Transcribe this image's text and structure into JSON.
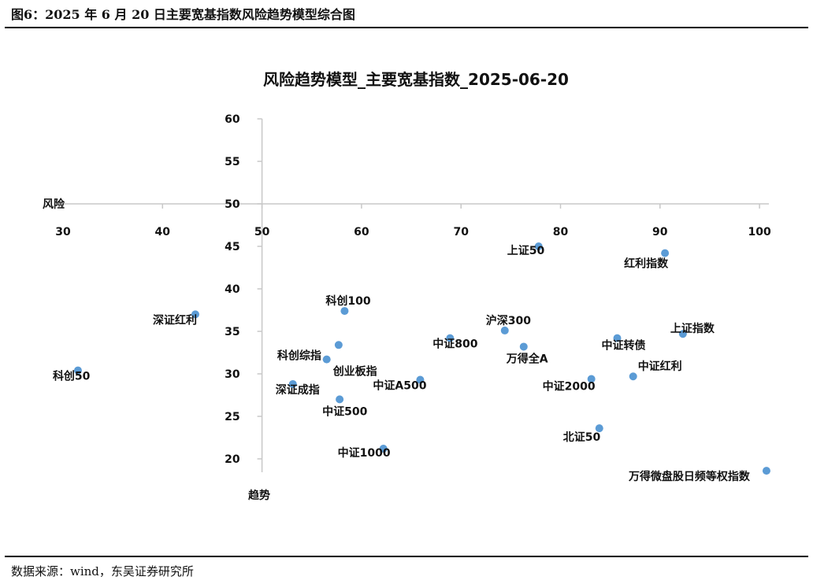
{
  "figure": {
    "title": "图6：2025 年 6 月 20 日主要宽基指数风险趋势模型综合图",
    "source": "数据来源：wind，东吴证券研究所"
  },
  "chart_data": {
    "type": "scatter",
    "title": "风险趋势模型_主要宽基指数_2025-06-20",
    "xlabel": "风险",
    "ylabel": "趋势",
    "xlim": [
      30,
      100
    ],
    "ylim": [
      20,
      60
    ],
    "x_cross": 50,
    "y_cross": 50,
    "xticks": [
      30,
      40,
      50,
      60,
      70,
      80,
      90,
      100
    ],
    "yticks": [
      20,
      25,
      30,
      35,
      40,
      45,
      50,
      55,
      60
    ],
    "grid": false,
    "marker_color": "#5b9bd5",
    "points": [
      {
        "name": "上证50",
        "x": 77.8,
        "y": 45.0
      },
      {
        "name": "红利指数",
        "x": 90.5,
        "y": 44.2
      },
      {
        "name": "深证红利",
        "x": 43.3,
        "y": 37.0
      },
      {
        "name": "科创100",
        "x": 58.3,
        "y": 37.4
      },
      {
        "name": "沪深300",
        "x": 74.4,
        "y": 35.1
      },
      {
        "name": "上证指数",
        "x": 92.3,
        "y": 34.7
      },
      {
        "name": "中证800",
        "x": 68.9,
        "y": 34.2
      },
      {
        "name": "中证转债",
        "x": 85.7,
        "y": 34.2
      },
      {
        "name": "科创综指",
        "x": 57.7,
        "y": 33.4
      },
      {
        "name": "万得全A",
        "x": 76.3,
        "y": 33.2
      },
      {
        "name": "创业板指",
        "x": 56.5,
        "y": 31.7
      },
      {
        "name": "科创50",
        "x": 31.5,
        "y": 30.4
      },
      {
        "name": "中证红利",
        "x": 87.3,
        "y": 29.7
      },
      {
        "name": "中证2000",
        "x": 83.1,
        "y": 29.4
      },
      {
        "name": "中证A500",
        "x": 65.9,
        "y": 29.3
      },
      {
        "name": "深证成指",
        "x": 53.1,
        "y": 28.8
      },
      {
        "name": "中证500",
        "x": 57.8,
        "y": 27.0
      },
      {
        "name": "北证50",
        "x": 83.9,
        "y": 23.6
      },
      {
        "name": "中证1000",
        "x": 62.2,
        "y": 21.2
      },
      {
        "name": "万得微盘股日频等权指数",
        "x": 100.7,
        "y": 18.6
      }
    ]
  }
}
